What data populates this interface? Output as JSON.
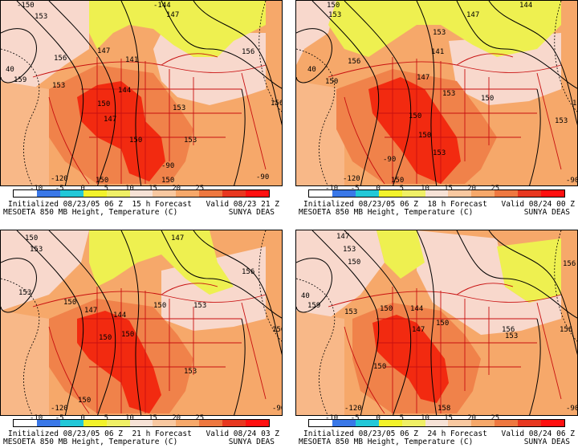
{
  "colorbar": {
    "ticks": [
      "-10",
      "-5",
      "0",
      "5",
      "10",
      "15",
      "20",
      "25"
    ],
    "colors": [
      "#ffffff",
      "#3a78e8",
      "#22c8d8",
      "#f2f22a",
      "#f0f066",
      "#f6e2d6",
      "#f8c8a0",
      "#f6a86a",
      "#ee7840",
      "#e83820",
      "#ff1010"
    ]
  },
  "panels": [
    {
      "init": "Initialized 08/23/05 06 Z",
      "forecast": "15 h Forecast",
      "valid": "Valid 08/23 21 Z",
      "model": "MESOETA 850 MB Height, Temperature (C)",
      "source": "SUNYA DEAS",
      "contours": [
        "-150",
        "153",
        "-144",
        "147",
        "147",
        "141",
        "156",
        "159",
        "40",
        "153",
        "156",
        "144",
        "153",
        "150",
        "147",
        "150",
        "153",
        "-120",
        "150",
        "150",
        "-90",
        "156",
        "-90"
      ]
    },
    {
      "init": "Initialized 08/23/05 06 Z",
      "forecast": "18 h Forecast",
      "valid": "Valid 08/24 00 Z",
      "model": "MESOETA 850 MB Height, Temperature (C)",
      "source": "SUNYA DEAS",
      "contours": [
        "150",
        "153",
        "147",
        "144",
        "153",
        "141",
        "156",
        "40",
        "150",
        "153",
        "150",
        "147",
        "150",
        "153",
        "-120",
        "150",
        "-90",
        "156",
        "-90",
        "150",
        "153"
      ]
    },
    {
      "init": "Initialized 08/23/05 06 Z",
      "forecast": "21 h Forecast",
      "valid": "Valid 08/24 03 Z",
      "model": "MESOETA 850 MB Height, Temperature (C)",
      "source": "SUNYA DEAS",
      "contours": [
        "150",
        "147",
        "153",
        "156",
        "153",
        "150",
        "147",
        "144",
        "150",
        "153",
        "150",
        "150",
        "-120",
        "156",
        "-90",
        "150",
        "153"
      ]
    },
    {
      "init": "Initialized 08/23/05 06 Z",
      "forecast": "24 h Forecast",
      "valid": "Valid 08/24 06 Z",
      "model": "MESOETA 850 MB Height, Temperature (C)",
      "source": "SUNYA DEAS",
      "contours": [
        "147",
        "153",
        "150",
        "156",
        "159",
        "40",
        "153",
        "150",
        "147",
        "144",
        "150",
        "156",
        "153",
        "150",
        "-120",
        "156",
        "-90",
        "158"
      ]
    }
  ]
}
